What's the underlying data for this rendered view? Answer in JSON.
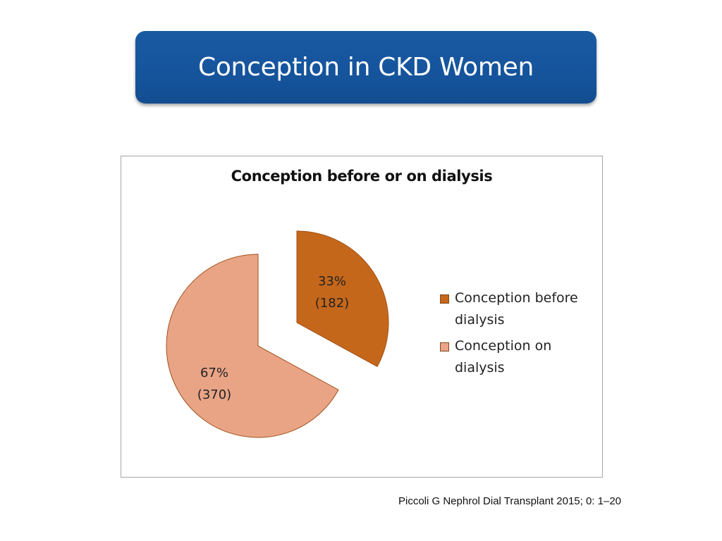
{
  "slide": {
    "title": "Conception in CKD Women",
    "citation": "Piccoli G Nephrol Dial Transplant 2015; 0: 1–20"
  },
  "chart_data": {
    "type": "pie",
    "title": "Conception before or on dialysis",
    "slices": [
      {
        "name": "Conception before dialysis",
        "percent": 33,
        "count": 182,
        "percent_label": "33%",
        "count_label": "(182)",
        "color": "#c5671b",
        "exploded": true
      },
      {
        "name": "Conception on dialysis",
        "percent": 67,
        "count": 370,
        "percent_label": "67%",
        "count_label": "(370)",
        "color": "#e9a486",
        "exploded": true
      }
    ],
    "legend": {
      "placement": "right",
      "entries": [
        "Conception before dialysis",
        "Conception on dialysis"
      ]
    }
  }
}
